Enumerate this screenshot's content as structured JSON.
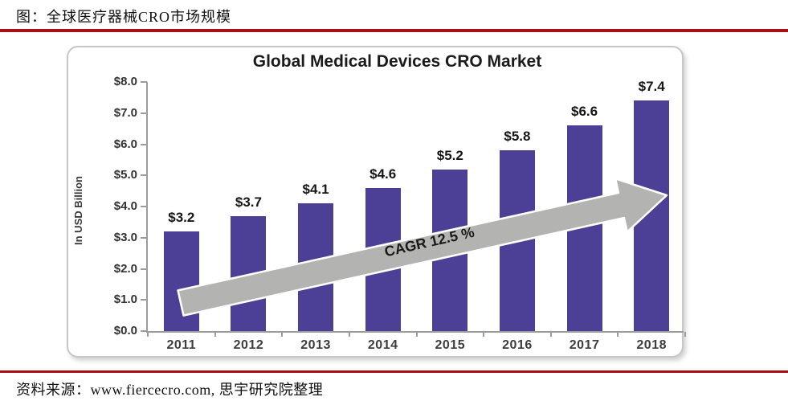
{
  "page": {
    "header_title": "图：全球医疗器械CRO市场规模",
    "source_note": "资料来源：www.fiercecro.com, 思宇研究院整理"
  },
  "chart_data": {
    "type": "bar",
    "title": "Global Medical Devices CRO Market",
    "xlabel": "",
    "ylabel": "In USD Billion",
    "categories": [
      "2011",
      "2012",
      "2013",
      "2014",
      "2015",
      "2016",
      "2017",
      "2018"
    ],
    "values": [
      3.2,
      3.7,
      4.1,
      4.6,
      5.2,
      5.8,
      6.6,
      7.4
    ],
    "bar_labels": [
      "$3.2",
      "$3.7",
      "$4.1",
      "$4.6",
      "$5.2",
      "$5.8",
      "$6.6",
      "$7.4"
    ],
    "y_ticks": [
      "$0.0",
      "$1.0",
      "$2.0",
      "$3.0",
      "$4.0",
      "$5.0",
      "$6.0",
      "$7.0",
      "$8.0"
    ],
    "ylim": [
      0,
      8
    ],
    "grid": false,
    "legend": "none",
    "annotation": "CAGR 12.5 %",
    "units": "USD Billion",
    "bar_color": "#4C3F96",
    "arrow_color": "#B3B3B1"
  },
  "colors": {
    "divider_red": "#A81013",
    "bar": "#4C3F96",
    "arrow": "#B3B3B1"
  }
}
